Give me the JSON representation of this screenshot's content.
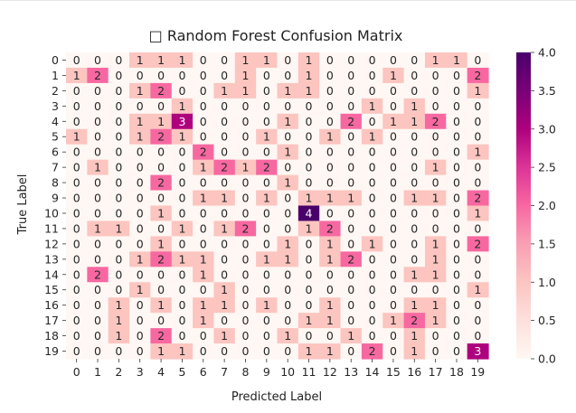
{
  "chart_data": {
    "type": "heatmap",
    "title": "□ Random Forest Confusion Matrix",
    "xlabel": "Predicted Label",
    "ylabel": "True Label",
    "x_tick_labels": [
      "0",
      "1",
      "2",
      "3",
      "4",
      "5",
      "6",
      "7",
      "8",
      "9",
      "10",
      "11",
      "12",
      "13",
      "14",
      "15",
      "16",
      "17",
      "18",
      "19"
    ],
    "y_tick_labels": [
      "0",
      "1",
      "2",
      "3",
      "4",
      "5",
      "6",
      "7",
      "8",
      "9",
      "10",
      "11",
      "12",
      "13",
      "14",
      "15",
      "16",
      "17",
      "18",
      "19"
    ],
    "matrix": [
      [
        0,
        0,
        0,
        1,
        1,
        1,
        0,
        0,
        1,
        1,
        0,
        1,
        0,
        0,
        0,
        0,
        0,
        1,
        1,
        0
      ],
      [
        1,
        2,
        0,
        0,
        0,
        0,
        0,
        0,
        1,
        0,
        0,
        1,
        0,
        0,
        0,
        1,
        0,
        0,
        0,
        2
      ],
      [
        0,
        0,
        0,
        1,
        2,
        0,
        0,
        1,
        1,
        0,
        1,
        1,
        0,
        0,
        0,
        0,
        0,
        0,
        0,
        1
      ],
      [
        0,
        0,
        0,
        0,
        0,
        1,
        0,
        0,
        0,
        0,
        0,
        0,
        0,
        0,
        1,
        0,
        1,
        0,
        0,
        0
      ],
      [
        0,
        0,
        0,
        1,
        1,
        3,
        0,
        0,
        0,
        0,
        1,
        0,
        0,
        2,
        0,
        1,
        1,
        2,
        0,
        0
      ],
      [
        1,
        0,
        0,
        1,
        2,
        1,
        0,
        0,
        0,
        1,
        0,
        0,
        1,
        0,
        1,
        0,
        0,
        0,
        0,
        0
      ],
      [
        0,
        0,
        0,
        0,
        0,
        0,
        2,
        0,
        0,
        0,
        1,
        0,
        0,
        0,
        0,
        0,
        0,
        0,
        0,
        1
      ],
      [
        0,
        1,
        0,
        0,
        0,
        0,
        1,
        2,
        1,
        2,
        0,
        0,
        0,
        0,
        0,
        0,
        0,
        1,
        0,
        0
      ],
      [
        0,
        0,
        0,
        0,
        2,
        0,
        0,
        0,
        0,
        0,
        1,
        0,
        0,
        0,
        0,
        0,
        0,
        0,
        0,
        0
      ],
      [
        0,
        0,
        0,
        0,
        0,
        0,
        1,
        1,
        0,
        1,
        0,
        1,
        1,
        1,
        0,
        0,
        1,
        1,
        0,
        2
      ],
      [
        0,
        0,
        0,
        0,
        1,
        0,
        0,
        0,
        0,
        0,
        0,
        4,
        0,
        0,
        0,
        0,
        0,
        0,
        0,
        1
      ],
      [
        0,
        1,
        1,
        0,
        0,
        1,
        0,
        1,
        2,
        0,
        0,
        1,
        2,
        0,
        0,
        0,
        0,
        0,
        0,
        0
      ],
      [
        0,
        0,
        0,
        0,
        1,
        0,
        0,
        0,
        0,
        0,
        1,
        0,
        1,
        0,
        1,
        0,
        0,
        1,
        0,
        2
      ],
      [
        0,
        0,
        0,
        1,
        2,
        1,
        1,
        0,
        0,
        1,
        1,
        0,
        1,
        2,
        0,
        0,
        0,
        1,
        0,
        0
      ],
      [
        0,
        2,
        0,
        0,
        0,
        0,
        1,
        0,
        0,
        0,
        0,
        0,
        0,
        0,
        0,
        0,
        1,
        1,
        0,
        0
      ],
      [
        0,
        0,
        0,
        1,
        0,
        0,
        0,
        1,
        0,
        0,
        0,
        0,
        0,
        0,
        0,
        0,
        0,
        0,
        0,
        1
      ],
      [
        0,
        0,
        1,
        0,
        1,
        0,
        1,
        1,
        0,
        1,
        0,
        0,
        1,
        0,
        0,
        0,
        1,
        1,
        0,
        0
      ],
      [
        0,
        0,
        1,
        0,
        0,
        0,
        1,
        0,
        0,
        0,
        0,
        1,
        1,
        0,
        0,
        1,
        2,
        1,
        0,
        0
      ],
      [
        0,
        0,
        1,
        0,
        2,
        0,
        0,
        1,
        0,
        0,
        1,
        0,
        0,
        1,
        0,
        0,
        1,
        0,
        0,
        0
      ],
      [
        0,
        0,
        0,
        0,
        1,
        1,
        0,
        0,
        0,
        0,
        0,
        1,
        1,
        0,
        2,
        0,
        1,
        0,
        0,
        3
      ]
    ],
    "colorbar": {
      "range": [
        0,
        4
      ],
      "tick_labels": [
        "0.0",
        "0.5",
        "1.0",
        "1.5",
        "2.0",
        "2.5",
        "3.0",
        "3.5",
        "4.0"
      ],
      "colormap": "RdPu",
      "stops": [
        "#fff7f3",
        "#fde0dd",
        "#fcc5c0",
        "#fa9fb5",
        "#f768a1",
        "#dd3497",
        "#ae017e",
        "#7a0177",
        "#49006a"
      ]
    },
    "annotations": true
  }
}
